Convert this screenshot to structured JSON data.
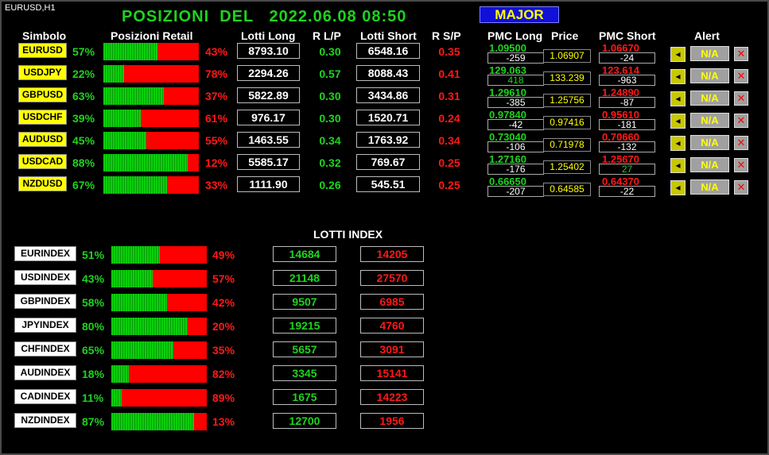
{
  "window": {
    "title": "EURUSD,H1"
  },
  "main_title": "POSIZIONI  DEL   2022.06.08 08:50",
  "major_button": "MAJOR",
  "headers": {
    "symbol": "Simbolo",
    "retail": "Posizioni Retail",
    "lots_long": "Lotti Long",
    "ratio_lp": "R L/P",
    "lots_short": "Lotti Short",
    "ratio_sp": "R S/P",
    "pmc_long": "PMC Long",
    "price": "Price",
    "pmc_short": "PMC Short",
    "alert": "Alert"
  },
  "pairs": [
    {
      "symbol": "EURUSD",
      "long_pct_label": "57%",
      "long_fraction": 0.57,
      "short_pct_label": "43%",
      "lots_long": "8793.10",
      "ratio_lp": "0.30",
      "lots_short": "6548.16",
      "ratio_sp": "0.35",
      "pmc_long": "1.09500",
      "pmc_long_pips": "-259",
      "price": "1.06907",
      "pmc_short": "1.06670",
      "pmc_short_pips": "-24",
      "alert": "N/A"
    },
    {
      "symbol": "USDJPY",
      "long_pct_label": "22%",
      "long_fraction": 0.22,
      "short_pct_label": "78%",
      "lots_long": "2294.26",
      "ratio_lp": "0.57",
      "lots_short": "8088.43",
      "ratio_sp": "0.41",
      "pmc_long": "129.063",
      "pmc_long_pips": "418",
      "price": "133.239",
      "pmc_short": "123.614",
      "pmc_short_pips": "-963",
      "alert": "N/A"
    },
    {
      "symbol": "GBPUSD",
      "long_pct_label": "63%",
      "long_fraction": 0.63,
      "short_pct_label": "37%",
      "lots_long": "5822.89",
      "ratio_lp": "0.30",
      "lots_short": "3434.86",
      "ratio_sp": "0.31",
      "pmc_long": "1.29610",
      "pmc_long_pips": "-385",
      "price": "1.25756",
      "pmc_short": "1.24890",
      "pmc_short_pips": "-87",
      "alert": "N/A"
    },
    {
      "symbol": "USDCHF",
      "long_pct_label": "39%",
      "long_fraction": 0.39,
      "short_pct_label": "61%",
      "lots_long": "976.17",
      "ratio_lp": "0.30",
      "lots_short": "1520.71",
      "ratio_sp": "0.24",
      "pmc_long": "0.97840",
      "pmc_long_pips": "-42",
      "price": "0.97416",
      "pmc_short": "0.95610",
      "pmc_short_pips": "-181",
      "alert": "N/A"
    },
    {
      "symbol": "AUDUSD",
      "long_pct_label": "45%",
      "long_fraction": 0.45,
      "short_pct_label": "55%",
      "lots_long": "1463.55",
      "ratio_lp": "0.34",
      "lots_short": "1763.92",
      "ratio_sp": "0.34",
      "pmc_long": "0.73040",
      "pmc_long_pips": "-106",
      "price": "0.71978",
      "pmc_short": "0.70660",
      "pmc_short_pips": "-132",
      "alert": "N/A"
    },
    {
      "symbol": "USDCAD",
      "long_pct_label": "88%",
      "long_fraction": 0.88,
      "short_pct_label": "12%",
      "lots_long": "5585.17",
      "ratio_lp": "0.32",
      "lots_short": "769.67",
      "ratio_sp": "0.25",
      "pmc_long": "1.27160",
      "pmc_long_pips": "-176",
      "price": "1.25402",
      "pmc_short": "1.25670",
      "pmc_short_pips": "27",
      "alert": "N/A"
    },
    {
      "symbol": "NZDUSD",
      "long_pct_label": "67%",
      "long_fraction": 0.67,
      "short_pct_label": "33%",
      "lots_long": "1111.90",
      "ratio_lp": "0.26",
      "lots_short": "545.51",
      "ratio_sp": "0.25",
      "pmc_long": "0.66650",
      "pmc_long_pips": "-207",
      "price": "0.64585",
      "pmc_short": "0.64370",
      "pmc_short_pips": "-22",
      "alert": "N/A"
    }
  ],
  "index_header": "LOTTI INDEX",
  "indices": [
    {
      "symbol": "EURINDEX",
      "long_pct_label": "51%",
      "long_fraction": 0.51,
      "short_pct_label": "49%",
      "lots_long": "14684",
      "lots_short": "14205"
    },
    {
      "symbol": "USDINDEX",
      "long_pct_label": "43%",
      "long_fraction": 0.43,
      "short_pct_label": "57%",
      "lots_long": "21148",
      "lots_short": "27570"
    },
    {
      "symbol": "GBPINDEX",
      "long_pct_label": "58%",
      "long_fraction": 0.58,
      "short_pct_label": "42%",
      "lots_long": "9507",
      "lots_short": "6985"
    },
    {
      "symbol": "JPYINDEX",
      "long_pct_label": "80%",
      "long_fraction": 0.8,
      "short_pct_label": "20%",
      "lots_long": "19215",
      "lots_short": "4760"
    },
    {
      "symbol": "CHFINDEX",
      "long_pct_label": "65%",
      "long_fraction": 0.65,
      "short_pct_label": "35%",
      "lots_long": "5657",
      "lots_short": "3091"
    },
    {
      "symbol": "AUDINDEX",
      "long_pct_label": "18%",
      "long_fraction": 0.18,
      "short_pct_label": "82%",
      "lots_long": "3345",
      "lots_short": "15141"
    },
    {
      "symbol": "CADINDEX",
      "long_pct_label": "11%",
      "long_fraction": 0.11,
      "short_pct_label": "89%",
      "lots_long": "1675",
      "lots_short": "14223"
    },
    {
      "symbol": "NZDINDEX",
      "long_pct_label": "87%",
      "long_fraction": 0.87,
      "short_pct_label": "13%",
      "lots_long": "12700",
      "lots_short": "1956"
    }
  ],
  "colors": {
    "background": "#000000",
    "long_green": "#1ed31e",
    "short_red": "#ff1818",
    "symbol_yellow": "#ffff00",
    "major_blue": "#1010d8",
    "price_yellow": "#ffff00"
  },
  "icons": {
    "alert_button": "bell-icon",
    "remove_button": "close-icon"
  }
}
